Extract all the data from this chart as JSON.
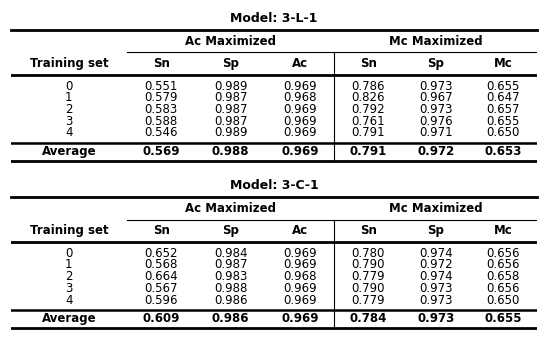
{
  "model1_title": "Model: 3-L-1",
  "model2_title": "Model: 3-C-1",
  "col_header1": "Ac Maximized",
  "col_header2": "Mc Maximized",
  "sub_cols": [
    "Sn",
    "Sp",
    "Ac",
    "Sn",
    "Sp",
    "Mc"
  ],
  "row_header": "Training set",
  "rows": [
    "0",
    "1",
    "2",
    "3",
    "4",
    "Average"
  ],
  "model1_data": [
    [
      0.551,
      0.989,
      0.969,
      0.786,
      0.973,
      0.655
    ],
    [
      0.579,
      0.987,
      0.968,
      0.826,
      0.967,
      0.647
    ],
    [
      0.583,
      0.987,
      0.969,
      0.792,
      0.973,
      0.657
    ],
    [
      0.588,
      0.987,
      0.969,
      0.761,
      0.976,
      0.655
    ],
    [
      0.546,
      0.989,
      0.969,
      0.791,
      0.971,
      0.65
    ],
    [
      0.569,
      0.988,
      0.969,
      0.791,
      0.972,
      0.653
    ]
  ],
  "model2_data": [
    [
      0.652,
      0.984,
      0.969,
      0.78,
      0.974,
      0.656
    ],
    [
      0.568,
      0.987,
      0.969,
      0.79,
      0.972,
      0.656
    ],
    [
      0.664,
      0.983,
      0.968,
      0.779,
      0.974,
      0.658
    ],
    [
      0.567,
      0.988,
      0.969,
      0.79,
      0.973,
      0.656
    ],
    [
      0.596,
      0.986,
      0.969,
      0.779,
      0.973,
      0.65
    ],
    [
      0.609,
      0.986,
      0.969,
      0.784,
      0.973,
      0.655
    ]
  ],
  "bg_color": "#ffffff",
  "text_color": "#000000",
  "title_fontsize": 9,
  "header_fontsize": 8.5,
  "data_fontsize": 8.5
}
